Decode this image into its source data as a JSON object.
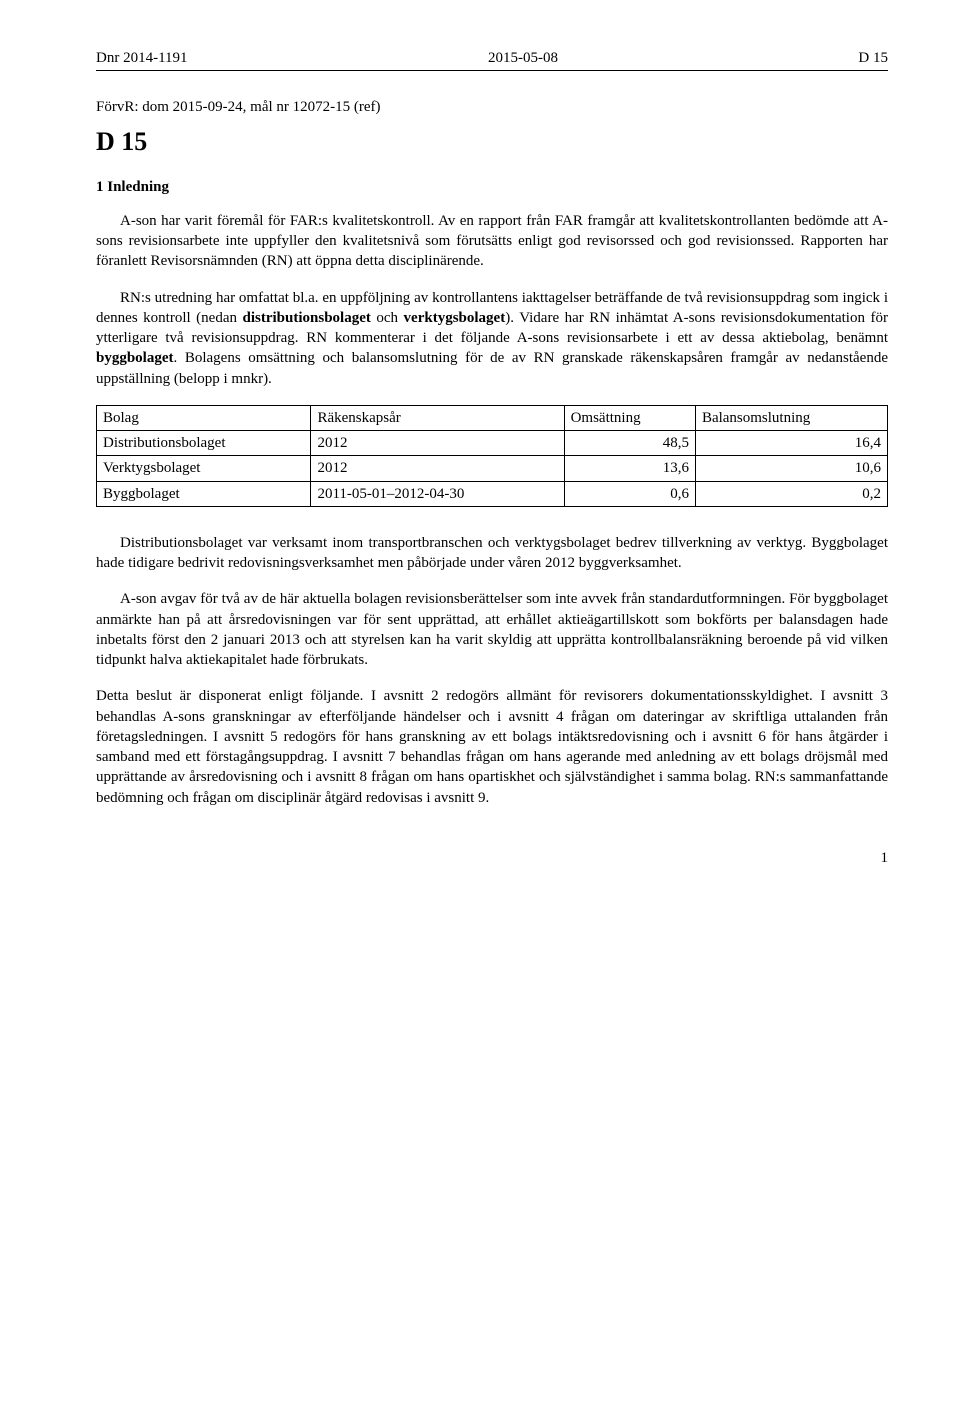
{
  "header": {
    "left": "Dnr 2014-1191",
    "center": "2015-05-08",
    "right": "D 15"
  },
  "refLine": "FörvR: dom 2015-09-24, mål nr 12072-15 (ref)",
  "docTitle": "D 15",
  "sectionHead": "1 Inledning",
  "para1": "A-son har varit föremål för FAR:s kvalitetskontroll. Av en rapport från FAR framgår att kvalitetskontrollanten bedömde att A-sons revisionsarbete inte uppfyller den kvalitetsnivå som förutsätts enligt god revisorssed och god revisionssed. Rapporten har föranlett Revisorsnämnden (RN) att öppna detta disciplinärende.",
  "para2a": "RN:s utredning har omfattat bl.a. en uppföljning av kontrollantens iakttagelser beträffande de två revisionsuppdrag som ingick i dennes kontroll (nedan ",
  "para2b": "distributionsbolaget",
  "para2c": " och ",
  "para2d": "verktygsbolaget",
  "para2e": "). Vidare har RN inhämtat A-sons revisionsdokumentation för ytterligare två revisionsuppdrag. RN kommenterar i det följande A-sons revisionsarbete i ett av dessa aktiebolag, benämnt ",
  "para2f": "byggbolaget",
  "para2g": ". Bolagens omsättning och balansomslutning för de av RN granskade räkenskapsåren framgår av nedanstående uppställning (belopp i mnkr).",
  "table": {
    "columns": [
      "Bolag",
      "Räkenskapsår",
      "Omsättning",
      "Balansomslutning"
    ],
    "rows": [
      [
        "Distributionsbolaget",
        "2012",
        "48,5",
        "16,4"
      ],
      [
        "Verktygsbolaget",
        "2012",
        "13,6",
        "10,6"
      ],
      [
        "Byggbolaget",
        "2011-05-01–2012-04-30",
        "0,6",
        "0,2"
      ]
    ]
  },
  "para3": "Distributionsbolaget var verksamt inom transportbranschen och verktygsbolaget bedrev tillverkning av verktyg. Byggbolaget hade tidigare bedrivit redovisningsverksamhet men påbörjade under våren 2012 byggverksamhet.",
  "para4": "A-son avgav för två av de här aktuella bolagen revisionsberättelser som inte avvek från standardutformningen. För byggbolaget anmärkte han på att årsredovisningen var för sent upprättad, att erhållet aktieägartillskott som bokförts per balansdagen hade inbetalts först den 2 januari 2013 och att styrelsen kan ha varit skyldig att upprätta kontrollbalansräkning beroende på vid vilken tidpunkt halva aktiekapitalet hade förbrukats.",
  "para5": "Detta beslut är disponerat enligt följande. I avsnitt 2 redogörs allmänt för revisorers dokumentationsskyldighet. I avsnitt 3 behandlas A-sons granskningar av efterföljande händelser och i avsnitt 4 frågan om dateringar av skriftliga uttalanden från företagsledningen. I avsnitt 5 redogörs för hans granskning av ett bolags intäktsredovisning och i avsnitt 6 för hans åtgärder i samband med ett förstagångsuppdrag. I avsnitt 7 behandlas frågan om hans agerande med anledning av ett bolags dröjsmål med upprättande av årsredovisning och i avsnitt 8 frågan om hans opartiskhet och självständighet i samma bolag. RN:s sammanfattande bedömning och frågan om disciplinär åtgärd redovisas i avsnitt 9.",
  "pageNumber": "1"
}
